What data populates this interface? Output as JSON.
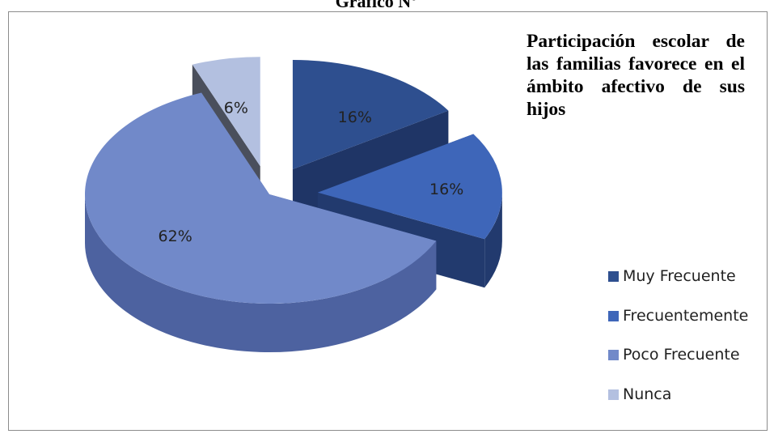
{
  "header_fragment": "Gráfico Nº",
  "chart_data": {
    "type": "pie",
    "title": "Participación escolar de las familias favorece en el ámbito afectivo de sus hijos",
    "categories": [
      "Muy Frecuente",
      "Frecuentemente",
      "Poco Frecuente",
      "Nunca"
    ],
    "values": [
      16,
      16,
      62,
      6
    ],
    "data_labels": [
      "16%",
      "16%",
      "62%",
      "6%"
    ],
    "colors": [
      "#2e4f8f",
      "#3e66b9",
      "#7189c9",
      "#b3c0e0"
    ],
    "side_colors": [
      "#1f3566",
      "#223a6e",
      "#4d62a0",
      "#4a4f5c"
    ],
    "exploded": [
      true,
      true,
      false,
      true
    ],
    "style": "3d",
    "legend_position": "right"
  }
}
